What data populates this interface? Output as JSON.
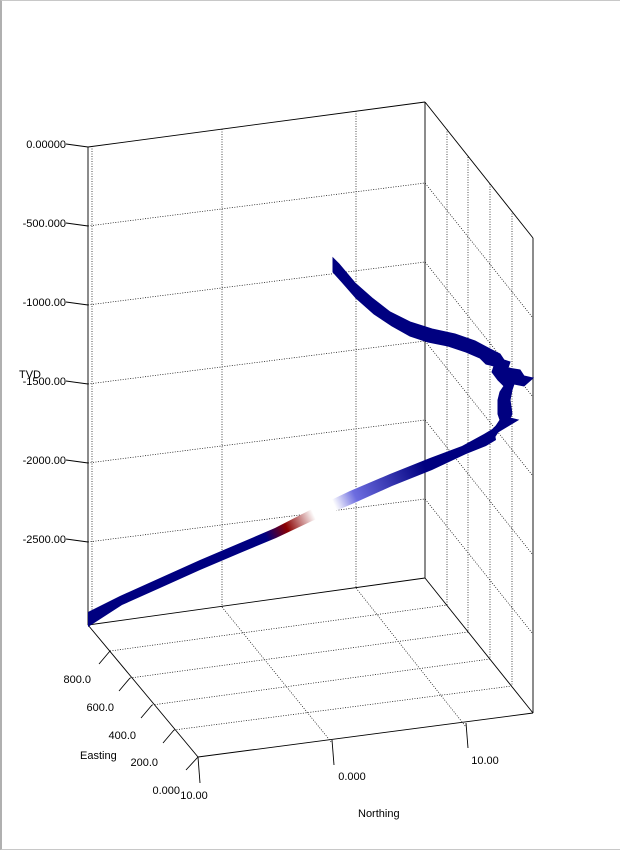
{
  "chart_data": {
    "type": "3d-well-trajectory",
    "title": "",
    "axes": {
      "tvd": {
        "label": "TVD",
        "ticks": [
          "0.00000",
          "-500.000",
          "-1000.00",
          "-1500.00",
          "-2000.00",
          "-2500.00"
        ]
      },
      "easting": {
        "label": "Easting",
        "ticks": [
          "800.0",
          "600.0",
          "400.0",
          "200.0",
          "0.000"
        ]
      },
      "northing": {
        "label": "Northing",
        "ticks": [
          "0.000",
          "10.00"
        ],
        "corner_tick": "10.00"
      }
    },
    "ranges": {
      "tvd": [
        -3000,
        0
      ],
      "easting": [
        0,
        1000
      ],
      "northing": [
        -10,
        12
      ]
    },
    "grid": true,
    "colors": {
      "well_base": "#000080",
      "hot": "#8b0000",
      "mid": "#ffffff",
      "cool": "#6d6de0"
    },
    "trajectory": [
      {
        "northing": 9.5,
        "easting": 700,
        "tvd": -700
      },
      {
        "northing": 11.0,
        "easting": 690,
        "tvd": -1000
      },
      {
        "northing": 12.5,
        "easting": 680,
        "tvd": -1300
      },
      {
        "northing": 13.0,
        "easting": 660,
        "tvd": -1450
      },
      {
        "northing": 13.0,
        "easting": 620,
        "tvd": -1600
      },
      {
        "northing": 13.0,
        "easting": 560,
        "tvd": -1800
      },
      {
        "northing": 10.0,
        "easting": 480,
        "tvd": -2100
      },
      {
        "northing": 2.0,
        "easting": 300,
        "tvd": -2450
      },
      {
        "northing": -6.0,
        "easting": 120,
        "tvd": -2800
      },
      {
        "northing": -10.0,
        "easting": 0,
        "tvd": -3000
      }
    ]
  }
}
